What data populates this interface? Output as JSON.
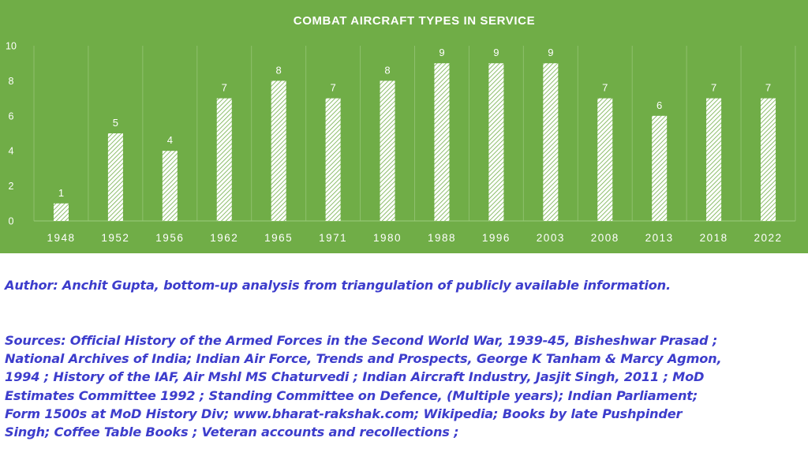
{
  "chart_data": {
    "type": "bar",
    "title": "COMBAT AIRCRAFT TYPES  IN SERVICE",
    "categories": [
      "1948",
      "1952",
      "1956",
      "1962",
      "1965",
      "1971",
      "1980",
      "1988",
      "1996",
      "2003",
      "2008",
      "2013",
      "2018",
      "2022"
    ],
    "values": [
      1,
      5,
      4,
      7,
      8,
      7,
      8,
      9,
      9,
      9,
      7,
      6,
      7,
      7
    ],
    "ylim": [
      0,
      10
    ],
    "yticks": [
      0,
      2,
      4,
      6,
      8,
      10
    ],
    "xlabel": "",
    "ylabel": "",
    "grid": "vertical separators",
    "data_labels": true,
    "bar_fill": "white diagonal hatch",
    "colors": {
      "background": "#70ad47",
      "bar": "#ffffff",
      "text": "#ffffff"
    }
  },
  "notes": {
    "author": "Author: Anchit Gupta, bottom-up analysis from triangulation of publicly available information.",
    "sources": "Sources: Official History of the Armed Forces in the Second World War, 1939-45, Bisheshwar Prasad ;\nNational Archives of India; Indian Air Force, Trends and Prospects, George K Tanham & Marcy Agmon,\n1994 ; History of the IAF, Air Mshl MS Chaturvedi ; Indian Aircraft Industry, Jasjit Singh, 2011 ; MoD\nEstimates Committee 1992 ;  Standing Committee on Defence, (Multiple years); Indian Parliament;\nForm 1500s at MoD History Div; www.bharat-rakshak.com; Wikipedia; Books by late Pushpinder\nSingh; Coffee Table Books ; Veteran accounts and recollections ;",
    "text_color": "#3d3dcc"
  }
}
